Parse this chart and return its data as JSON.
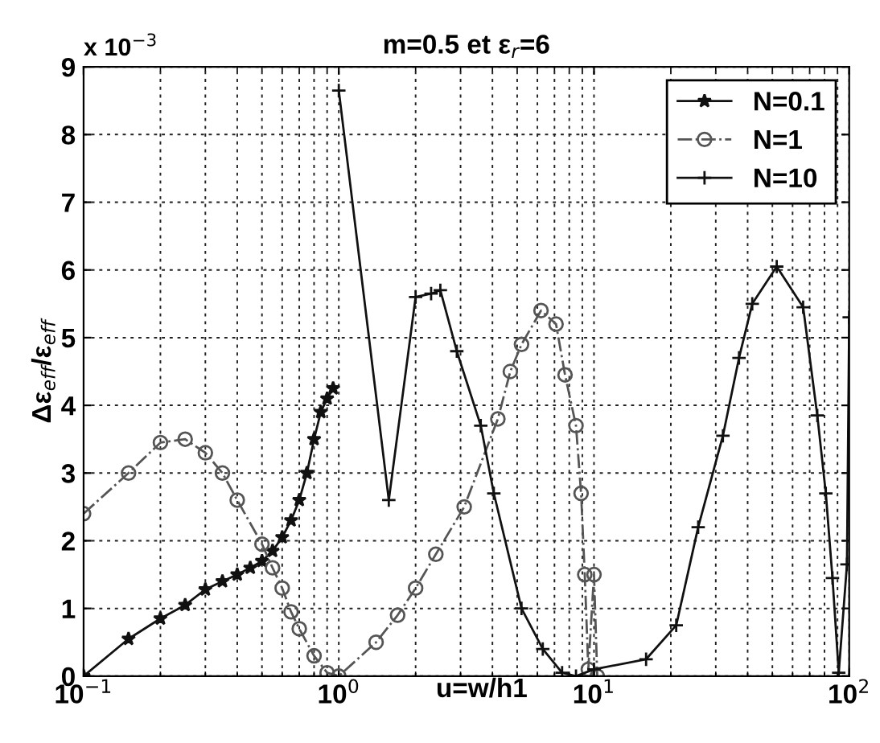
{
  "chart_data": {
    "type": "line",
    "title": "m=0.5 et ε$_{r}$=6",
    "xlabel": "u=w/h1",
    "ylabel": "Δε$_{eff}$/ε$_{eff}$",
    "annotations": [
      "x 10$^{−3}$"
    ],
    "log": "x",
    "xlim": [
      0.1,
      100
    ],
    "ylim": [
      0,
      9
    ],
    "xticks": [
      {
        "value": 0.1,
        "label": "10$^{−1}$"
      },
      {
        "value": 1,
        "label": "10$^{0}$"
      },
      {
        "value": 10,
        "label": "10$^{1}$"
      },
      {
        "value": 100,
        "label": "10$^{2}$"
      }
    ],
    "yticks": [
      0,
      1,
      2,
      3,
      4,
      5,
      6,
      7,
      8,
      9
    ],
    "grid": true,
    "legend": "top right",
    "series": [
      {
        "name": "N=0.1",
        "color": "#111111",
        "marker": "star",
        "line_style": "solid",
        "x": [
          0.1,
          0.15,
          0.2,
          0.25,
          0.3,
          0.35,
          0.4,
          0.45,
          0.5,
          0.55,
          0.6,
          0.65,
          0.7,
          0.75,
          0.8,
          0.85,
          0.9,
          0.95
        ],
        "values": [
          0,
          0.55,
          0.85,
          1.05,
          1.28,
          1.4,
          1.5,
          1.6,
          1.7,
          1.85,
          2.05,
          2.3,
          2.6,
          3.0,
          3.5,
          3.9,
          4.1,
          4.25
        ]
      },
      {
        "name": "N=1",
        "color": "#555555",
        "marker": "circle",
        "line_style": "dashed",
        "x": [
          0.1,
          0.15,
          0.2,
          0.25,
          0.3,
          0.35,
          0.4,
          0.5,
          0.55,
          0.6,
          0.65,
          0.7,
          0.8,
          0.9,
          1.0,
          1.4,
          1.7,
          2.0,
          2.4,
          3.1,
          4.2,
          4.7,
          5.2,
          6.2,
          7.1,
          7.7,
          8.5,
          8.9,
          9.2,
          9.5,
          10.0,
          10.3
        ],
        "values": [
          2.4,
          3.0,
          3.45,
          3.5,
          3.3,
          3.0,
          2.6,
          1.95,
          1.6,
          1.3,
          0.95,
          0.7,
          0.3,
          0.05,
          0,
          0.5,
          0.9,
          1.3,
          1.8,
          2.5,
          3.8,
          4.5,
          4.9,
          5.4,
          5.2,
          4.45,
          3.7,
          2.7,
          1.5,
          0.1,
          1.5,
          0
        ]
      },
      {
        "name": "N=10",
        "color": "#111111",
        "marker": "cross",
        "line_style": "solid",
        "x": [
          1.0,
          1.57,
          2.0,
          2.3,
          2.5,
          2.9,
          3.6,
          4.05,
          5.2,
          6.3,
          7.5,
          8.5,
          10,
          16,
          21,
          25.6,
          32,
          37,
          41.7,
          52,
          66,
          75,
          81,
          86,
          91,
          98,
          100
        ],
        "values": [
          8.65,
          2.6,
          5.6,
          5.65,
          5.7,
          4.8,
          3.7,
          2.7,
          1.0,
          0.4,
          0.05,
          0,
          0.1,
          0.25,
          0.75,
          2.2,
          3.55,
          4.7,
          5.5,
          6.05,
          5.45,
          3.85,
          2.7,
          1.45,
          0.05,
          1.65,
          5.3
        ]
      }
    ]
  }
}
